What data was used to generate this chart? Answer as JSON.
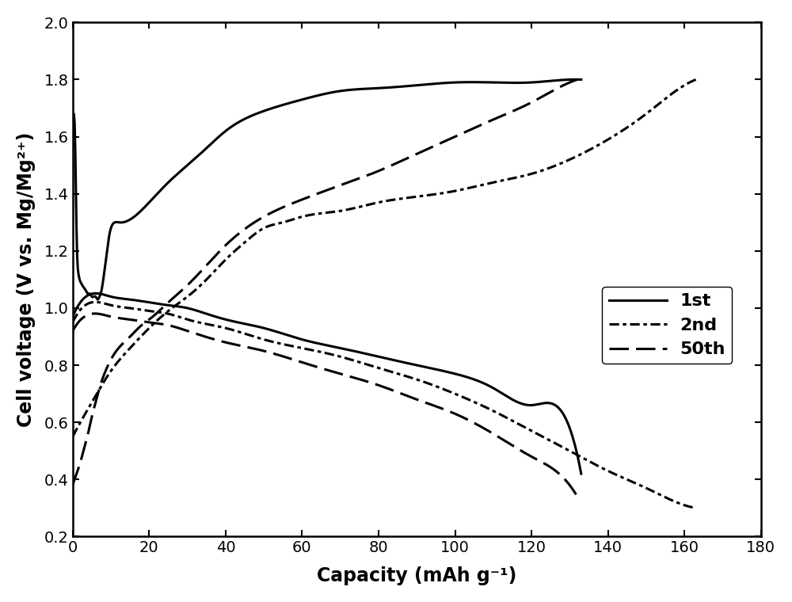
{
  "xlabel": "Capacity (mAh g⁻¹)",
  "ylabel": "Cell voltage (V vs. Mg/Mg²⁺)",
  "xlim": [
    0,
    180
  ],
  "ylim": [
    0.2,
    2.0
  ],
  "xticks": [
    0,
    20,
    40,
    60,
    80,
    100,
    120,
    140,
    160,
    180
  ],
  "yticks": [
    0.2,
    0.4,
    0.6,
    0.8,
    1.0,
    1.2,
    1.4,
    1.6,
    1.8,
    2.0
  ],
  "background_color": "#ffffff",
  "curve_1st_charge": {
    "x": [
      0.0,
      0.3,
      0.6,
      0.9,
      1.2,
      1.5,
      1.8,
      2.1,
      2.5,
      3.0,
      3.5,
      4.0,
      4.5,
      5.0,
      5.5,
      6.0,
      6.5,
      7.0,
      7.5,
      8.0,
      8.5,
      9.0,
      9.5,
      10.0,
      11.0,
      12.0,
      13.0,
      15.0,
      17.0,
      20.0,
      25.0,
      30.0,
      35.0,
      40.0,
      50.0,
      60.0,
      70.0,
      80.0,
      90.0,
      100.0,
      110.0,
      120.0,
      130.0,
      133.0
    ],
    "y": [
      1.69,
      1.68,
      1.6,
      1.35,
      1.17,
      1.12,
      1.1,
      1.09,
      1.08,
      1.07,
      1.06,
      1.05,
      1.05,
      1.04,
      1.04,
      1.04,
      1.03,
      1.04,
      1.06,
      1.1,
      1.15,
      1.2,
      1.25,
      1.28,
      1.3,
      1.3,
      1.3,
      1.31,
      1.33,
      1.37,
      1.44,
      1.5,
      1.56,
      1.62,
      1.69,
      1.73,
      1.76,
      1.77,
      1.78,
      1.79,
      1.79,
      1.79,
      1.8,
      1.8
    ]
  },
  "curve_1st_discharge": {
    "x": [
      0.0,
      5.0,
      10.0,
      15.0,
      20.0,
      25.0,
      30.0,
      35.0,
      40.0,
      50.0,
      60.0,
      70.0,
      80.0,
      90.0,
      100.0,
      110.0,
      120.0,
      130.0,
      133.0
    ],
    "y": [
      0.97,
      1.05,
      1.04,
      1.03,
      1.02,
      1.01,
      1.0,
      0.98,
      0.96,
      0.93,
      0.89,
      0.86,
      0.83,
      0.8,
      0.77,
      0.72,
      0.66,
      0.58,
      0.42
    ]
  },
  "curve_2nd_charge": {
    "x": [
      0.0,
      2.0,
      5.0,
      10.0,
      15.0,
      20.0,
      25.0,
      30.0,
      35.0,
      40.0,
      45.0,
      50.0,
      55.0,
      60.0,
      70.0,
      80.0,
      90.0,
      100.0,
      110.0,
      120.0,
      130.0,
      140.0,
      150.0,
      160.0,
      163.0
    ],
    "y": [
      0.55,
      0.6,
      0.67,
      0.78,
      0.86,
      0.93,
      0.99,
      1.04,
      1.1,
      1.17,
      1.23,
      1.28,
      1.3,
      1.32,
      1.34,
      1.37,
      1.39,
      1.41,
      1.44,
      1.47,
      1.52,
      1.59,
      1.68,
      1.78,
      1.8
    ]
  },
  "curve_2nd_discharge": {
    "x": [
      0.0,
      5.0,
      10.0,
      15.0,
      20.0,
      25.0,
      30.0,
      40.0,
      50.0,
      60.0,
      70.0,
      80.0,
      90.0,
      100.0,
      110.0,
      120.0,
      130.0,
      140.0,
      150.0,
      160.0,
      163.0
    ],
    "y": [
      0.95,
      1.02,
      1.01,
      1.0,
      0.99,
      0.98,
      0.96,
      0.93,
      0.89,
      0.86,
      0.83,
      0.79,
      0.75,
      0.7,
      0.64,
      0.57,
      0.5,
      0.43,
      0.37,
      0.31,
      0.3
    ]
  },
  "curve_50th_charge": {
    "x": [
      0.0,
      1.0,
      2.0,
      3.0,
      4.0,
      5.0,
      6.0,
      7.0,
      8.0,
      10.0,
      12.0,
      15.0,
      18.0,
      20.0,
      25.0,
      30.0,
      35.0,
      40.0,
      50.0,
      60.0,
      70.0,
      80.0,
      90.0,
      100.0,
      110.0,
      120.0,
      130.0,
      132.0
    ],
    "y": [
      0.38,
      0.42,
      0.46,
      0.51,
      0.56,
      0.62,
      0.67,
      0.72,
      0.76,
      0.82,
      0.86,
      0.9,
      0.94,
      0.96,
      1.02,
      1.08,
      1.15,
      1.22,
      1.32,
      1.38,
      1.43,
      1.48,
      1.54,
      1.6,
      1.66,
      1.72,
      1.79,
      1.8
    ]
  },
  "curve_50th_discharge": {
    "x": [
      0.0,
      5.0,
      10.0,
      15.0,
      20.0,
      25.0,
      30.0,
      40.0,
      50.0,
      60.0,
      70.0,
      80.0,
      90.0,
      100.0,
      110.0,
      120.0,
      130.0,
      132.0
    ],
    "y": [
      0.92,
      0.98,
      0.97,
      0.96,
      0.95,
      0.94,
      0.92,
      0.88,
      0.85,
      0.81,
      0.77,
      0.73,
      0.68,
      0.63,
      0.56,
      0.48,
      0.38,
      0.34
    ]
  }
}
